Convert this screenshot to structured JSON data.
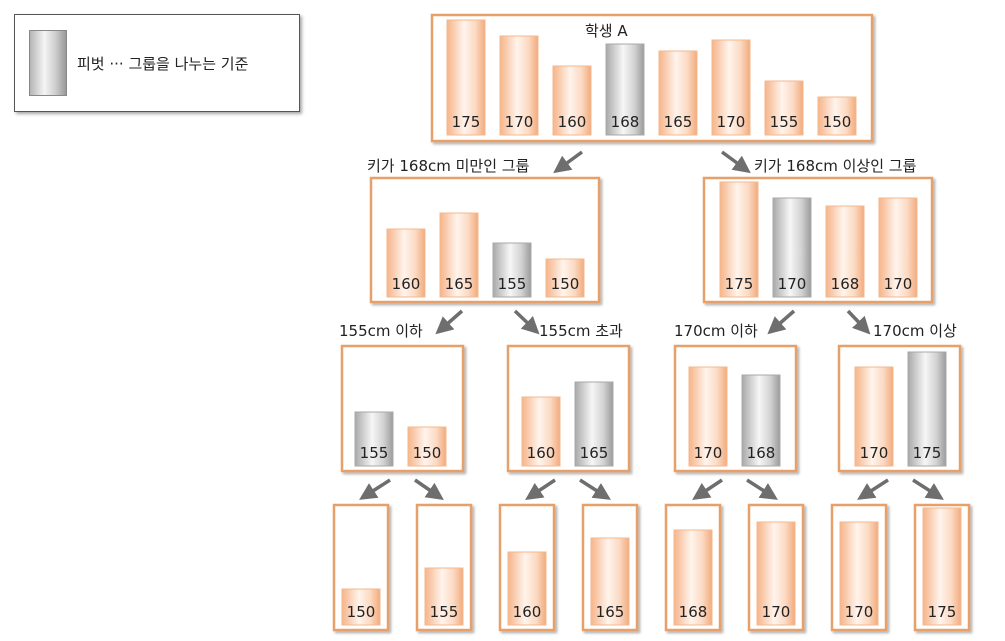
{
  "legend": {
    "swatch": "pivot-swatch",
    "text": "피벗 ··· 그룹을 나누는 기준"
  },
  "colors": {
    "box_border": "#e8a06a",
    "bar_orange_edge": "#f4b88c",
    "bar_orange_light": "#fff1e6",
    "bar_pivot_edge": "#a8a8a8",
    "bar_pivot_light": "#f4f4f4",
    "arrow": "#6e6e6e"
  },
  "root": {
    "label": "학생 A",
    "values": [
      "175",
      "170",
      "160",
      "168",
      "165",
      "170",
      "155",
      "150"
    ],
    "pivot_index": 3
  },
  "level1": [
    {
      "label": "키가 168cm 미만인 그룹",
      "values": [
        "160",
        "165",
        "155",
        "150"
      ],
      "pivot_index": 2
    },
    {
      "label": "키가 168cm 이상인 그룹",
      "values": [
        "175",
        "170",
        "168",
        "170"
      ],
      "pivot_index": 1
    }
  ],
  "level2": [
    {
      "label": "155cm 이하",
      "values": [
        "155",
        "150"
      ],
      "pivot_index": 0
    },
    {
      "label": "155cm 초과",
      "values": [
        "160",
        "165"
      ],
      "pivot_index": 1
    },
    {
      "label": "170cm 이하",
      "values": [
        "170",
        "168"
      ],
      "pivot_index": 1
    },
    {
      "label": "170cm 이상",
      "values": [
        "170",
        "175"
      ],
      "pivot_index": 1
    }
  ],
  "leaves": [
    "150",
    "155",
    "160",
    "165",
    "168",
    "170",
    "170",
    "175"
  ]
}
